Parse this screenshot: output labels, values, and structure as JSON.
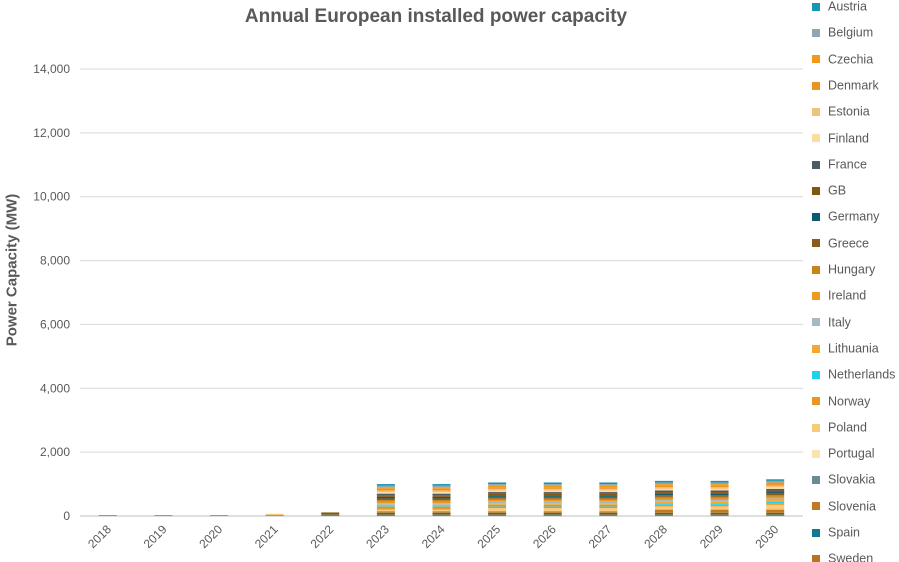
{
  "chart_data": {
    "type": "bar",
    "stacked": true,
    "title": "Annual European installed power capacity",
    "xlabel": "",
    "ylabel": "Power Capacity (MW)",
    "ylim": [
      0,
      14000
    ],
    "yticks": [
      0,
      2000,
      4000,
      6000,
      8000,
      10000,
      12000,
      14000
    ],
    "ytick_labels": [
      "0",
      "2,000",
      "4,000",
      "6,000",
      "8,000",
      "10,000",
      "12,000",
      "14,000"
    ],
    "grid": true,
    "legend_position": "right",
    "categories": [
      "2018",
      "2019",
      "2020",
      "2021",
      "2022",
      "2023",
      "2024",
      "2025",
      "2026",
      "2027",
      "2028",
      "2029",
      "2030"
    ],
    "series": [
      {
        "name": "Sweden",
        "color": "#b8741a",
        "values": [
          0,
          0,
          0,
          0,
          50,
          50,
          50,
          50,
          50,
          50,
          50,
          50,
          50
        ]
      },
      {
        "name": "Spain",
        "color": "#0f7a91",
        "values": [
          20,
          20,
          20,
          20,
          50,
          50,
          50,
          50,
          50,
          50,
          50,
          50,
          50
        ]
      },
      {
        "name": "Slovenia",
        "color": "#c27a1f",
        "values": [
          0,
          0,
          0,
          0,
          20,
          50,
          50,
          50,
          50,
          50,
          100,
          100,
          100
        ]
      },
      {
        "name": "Slovakia",
        "color": "#6b8a96",
        "values": [
          0,
          0,
          0,
          0,
          0,
          0,
          0,
          0,
          0,
          0,
          0,
          0,
          0
        ]
      },
      {
        "name": "Portugal",
        "color": "#fbe3ae",
        "values": [
          0,
          0,
          0,
          0,
          0,
          0,
          0,
          0,
          0,
          0,
          0,
          0,
          0
        ]
      },
      {
        "name": "Poland",
        "color": "#f9c97e",
        "values": [
          0,
          0,
          0,
          50,
          0,
          50,
          50,
          100,
          100,
          100,
          100,
          100,
          150
        ]
      },
      {
        "name": "Norway",
        "color": "#e99623",
        "values": [
          0,
          0,
          0,
          0,
          0,
          50,
          50,
          50,
          50,
          50,
          50,
          50,
          50
        ]
      },
      {
        "name": "Netherlands",
        "color": "#22cfee",
        "values": [
          0,
          0,
          0,
          0,
          0,
          50,
          50,
          50,
          50,
          50,
          50,
          50,
          50
        ]
      },
      {
        "name": "Lithuania",
        "color": "#f5a833",
        "values": [
          0,
          0,
          0,
          0,
          0,
          50,
          50,
          50,
          50,
          50,
          50,
          50,
          50
        ]
      },
      {
        "name": "Italy",
        "color": "#a7b9c2",
        "values": [
          0,
          0,
          0,
          0,
          0,
          50,
          50,
          50,
          50,
          50,
          50,
          50,
          50
        ]
      },
      {
        "name": "Ireland",
        "color": "#ee9a1e",
        "values": [
          0,
          0,
          0,
          0,
          0,
          50,
          50,
          50,
          50,
          50,
          50,
          50,
          50
        ]
      },
      {
        "name": "Hungary",
        "color": "#c98218",
        "values": [
          0,
          0,
          0,
          0,
          0,
          50,
          50,
          50,
          50,
          50,
          50,
          50,
          50
        ]
      },
      {
        "name": "Greece",
        "color": "#8b5a1c",
        "values": [
          0,
          0,
          0,
          0,
          0,
          50,
          50,
          50,
          50,
          50,
          50,
          50,
          50
        ]
      },
      {
        "name": "Germany",
        "color": "#0b5b72",
        "values": [
          0,
          0,
          0,
          0,
          0,
          50,
          50,
          50,
          50,
          50,
          50,
          50,
          50
        ]
      },
      {
        "name": "GB",
        "color": "#8a5314",
        "values": [
          0,
          0,
          0,
          0,
          0,
          50,
          50,
          50,
          50,
          50,
          50,
          50,
          50
        ]
      },
      {
        "name": "France",
        "color": "#4b5c66",
        "values": [
          0,
          0,
          0,
          0,
          0,
          50,
          50,
          50,
          50,
          50,
          50,
          50,
          50
        ]
      },
      {
        "name": "Finland",
        "color": "#fbdca4",
        "values": [
          0,
          0,
          0,
          0,
          0,
          50,
          50,
          50,
          50,
          50,
          50,
          50,
          50
        ]
      },
      {
        "name": "Estonia",
        "color": "#f7c07a",
        "values": [
          0,
          0,
          0,
          0,
          0,
          50,
          50,
          50,
          50,
          50,
          50,
          50,
          50
        ]
      },
      {
        "name": "Denmark",
        "color": "#ea9420",
        "values": [
          0,
          0,
          0,
          0,
          0,
          50,
          50,
          50,
          50,
          50,
          50,
          50,
          50
        ]
      },
      {
        "name": "Czechia",
        "color": "#f2991c",
        "values": [
          0,
          0,
          0,
          0,
          0,
          50,
          50,
          50,
          50,
          50,
          50,
          50,
          50
        ]
      },
      {
        "name": "Belgium",
        "color": "#8fa7b3",
        "values": [
          0,
          0,
          0,
          0,
          0,
          50,
          50,
          50,
          50,
          50,
          50,
          50,
          50
        ]
      },
      {
        "name": "Austria",
        "color": "#1696b5",
        "values": [
          0,
          0,
          0,
          0,
          0,
          50,
          50,
          50,
          50,
          50,
          50,
          50,
          50
        ]
      }
    ]
  }
}
